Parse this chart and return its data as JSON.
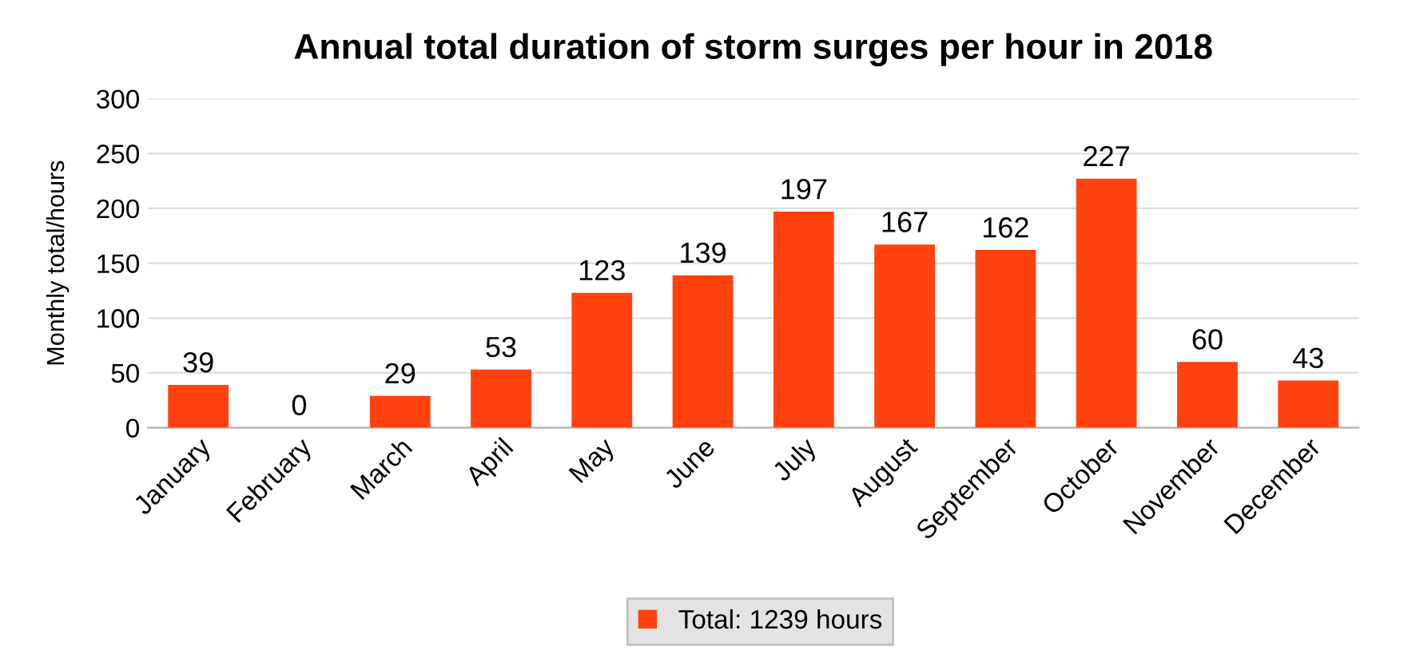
{
  "chart_data": {
    "type": "bar",
    "title": "Annual total duration of storm surges per hour in 2018",
    "ylabel": "Monthly total/hours",
    "categories": [
      "January",
      "February",
      "March",
      "April",
      "May",
      "June",
      "July",
      "August",
      "September",
      "October",
      "November",
      "December"
    ],
    "series": [
      {
        "name": "Total: 1239 hours",
        "color": "#ff420e",
        "values": [
          39,
          0,
          29,
          53,
          123,
          139,
          197,
          167,
          162,
          227,
          60,
          43
        ]
      }
    ],
    "ylim": [
      0,
      300
    ],
    "yticks": [
      0,
      50,
      100,
      150,
      200,
      250,
      300
    ],
    "grid": "y",
    "legend": "bottom",
    "data_labels": true
  }
}
